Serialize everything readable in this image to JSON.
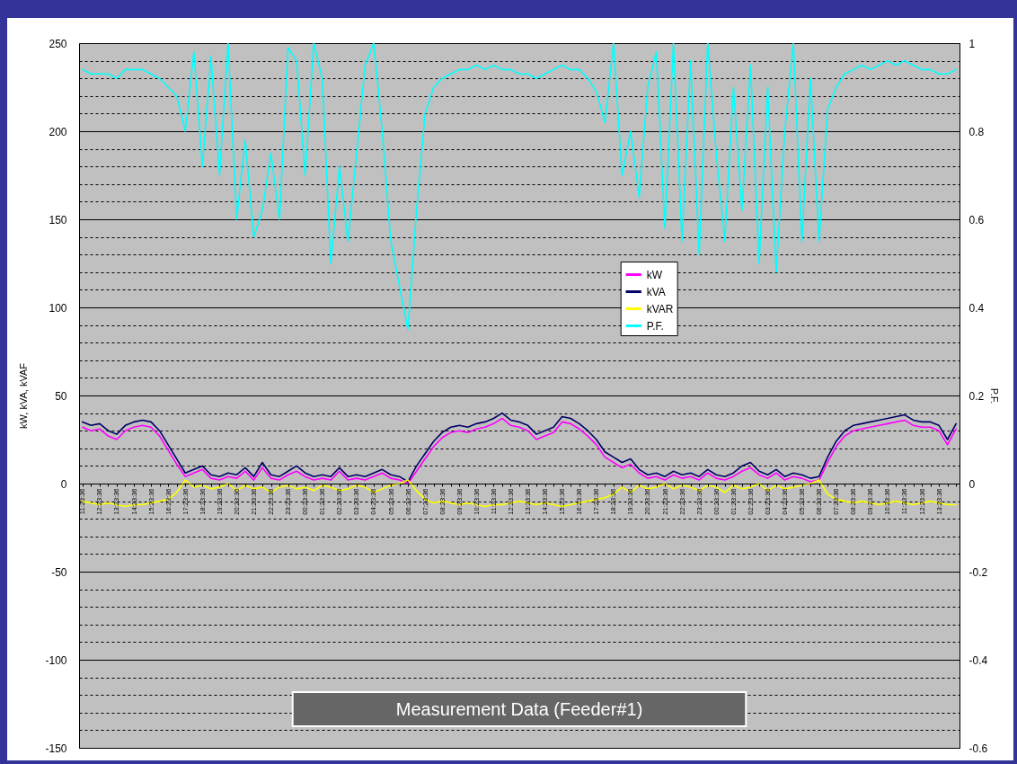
{
  "chart_data": {
    "type": "line",
    "title": "Measurement Data (Feeder#1)",
    "ylabel": "kW, kVA, kVAF",
    "y2label": "P.F.",
    "categories": [
      "11:23:36",
      null,
      "12:23:36",
      null,
      "13:23:36",
      null,
      "14:23:36",
      null,
      "15:23:36",
      null,
      "16:23:36",
      null,
      "17:23:36",
      null,
      "18:23:36",
      null,
      "19:23:36",
      null,
      "20:23:36",
      null,
      "21:23:36",
      null,
      "22:23:36",
      null,
      "23:23:36",
      null,
      "00:23:36",
      null,
      "01:23:36",
      null,
      "02:23:36",
      null,
      "03:23:36",
      null,
      "04:23:36",
      null,
      "05:23:36",
      null,
      "06:23:36",
      null,
      "07:23:36",
      null,
      "08:23:36",
      null,
      "09:23:36",
      null,
      "10:23:36",
      null,
      "11:23:36",
      null,
      "12:23:36",
      null,
      "13:23:36",
      null,
      "14:23:36",
      null,
      "15:23:36",
      null,
      "16:23:36",
      null,
      "17:23:36",
      null,
      "18:23:36",
      null,
      "19:23:36",
      null,
      "20:23:36",
      null,
      "21:23:36",
      null,
      "22:23:36",
      null,
      "23:23:36",
      null,
      "00:23:36",
      null,
      "01:23:36",
      null,
      "02:23:36",
      null,
      "03:23:36",
      null,
      "04:23:36",
      null,
      "05:23:36",
      null,
      "06:23:36",
      null,
      "07:23:36",
      null,
      "08:23:36",
      null,
      "09:23:36",
      null,
      "10:23:36",
      null,
      "11:23:36",
      null,
      "12:23:36",
      null,
      "13:23:36",
      null,
      null
    ],
    "series": [
      {
        "name": "kW",
        "color": "#ff00ff",
        "values": [
          32,
          30,
          31,
          27,
          25,
          30,
          32,
          33,
          32,
          27,
          19,
          11,
          4,
          6,
          8,
          3,
          2,
          4,
          3,
          7,
          2,
          9,
          3,
          2,
          5,
          7,
          4,
          2,
          3,
          2,
          7,
          2,
          3,
          2,
          4,
          6,
          3,
          2,
          0,
          7,
          14,
          21,
          26,
          29,
          30,
          29,
          31,
          32,
          34,
          37,
          33,
          32,
          30,
          25,
          27,
          29,
          35,
          34,
          31,
          27,
          22,
          15,
          12,
          9,
          11,
          6,
          3,
          4,
          2,
          5,
          3,
          4,
          2,
          6,
          3,
          2,
          4,
          7,
          9,
          5,
          3,
          6,
          2,
          4,
          3,
          1,
          2,
          12,
          21,
          27,
          30,
          31,
          32,
          33,
          34,
          35,
          36,
          33,
          32,
          32,
          30,
          22,
          31
        ]
      },
      {
        "name": "kVA",
        "color": "#000066",
        "values": [
          35,
          33,
          34,
          30,
          28,
          33,
          35,
          36,
          35,
          30,
          22,
          14,
          6,
          8,
          10,
          5,
          4,
          6,
          5,
          9,
          4,
          12,
          5,
          4,
          7,
          10,
          6,
          4,
          5,
          4,
          9,
          4,
          5,
          4,
          6,
          8,
          5,
          4,
          1,
          10,
          17,
          24,
          29,
          32,
          33,
          32,
          34,
          35,
          37,
          40,
          36,
          35,
          33,
          28,
          30,
          32,
          38,
          37,
          34,
          30,
          25,
          18,
          15,
          12,
          14,
          8,
          5,
          6,
          4,
          7,
          5,
          6,
          4,
          8,
          5,
          4,
          6,
          10,
          12,
          7,
          5,
          8,
          4,
          6,
          5,
          3,
          4,
          15,
          24,
          30,
          33,
          34,
          35,
          36,
          37,
          38,
          39,
          36,
          35,
          35,
          33,
          25,
          34
        ]
      },
      {
        "name": "kVAR",
        "color": "#ffff00",
        "values": [
          -10,
          -11,
          -12,
          -11,
          -12,
          -13,
          -12,
          -12,
          -11,
          -10,
          -9,
          -5,
          2,
          -2,
          -1,
          -3,
          -2,
          0,
          -4,
          -1,
          -3,
          -2,
          -5,
          -2,
          -1,
          -3,
          -2,
          -4,
          -1,
          -2,
          -4,
          -3,
          -1,
          -2,
          -5,
          -3,
          -1,
          0,
          2,
          -4,
          -9,
          -11,
          -10,
          -11,
          -12,
          -11,
          -12,
          -13,
          -12,
          -12,
          -11,
          -10,
          -11,
          -12,
          -11,
          -12,
          -13,
          -12,
          -11,
          -10,
          -9,
          -8,
          -6,
          -2,
          -5,
          -1,
          -3,
          -2,
          0,
          -3,
          -1,
          -2,
          -4,
          -1,
          -2,
          -5,
          -1,
          -3,
          -2,
          0,
          -4,
          -1,
          -3,
          -2,
          -1,
          0,
          2,
          -6,
          -9,
          -10,
          -11,
          -10,
          -11,
          -12,
          -11,
          -10,
          -11,
          -12,
          -11,
          -10,
          -11,
          -12,
          -12
        ]
      },
      {
        "name": "P.F.",
        "color": "#00ffff",
        "axis": "y2",
        "values": [
          0.94,
          0.93,
          0.93,
          0.93,
          0.92,
          0.94,
          0.94,
          0.94,
          0.93,
          0.92,
          0.9,
          0.88,
          0.8,
          0.98,
          0.72,
          0.97,
          0.7,
          1.0,
          0.6,
          0.78,
          0.56,
          0.62,
          0.75,
          0.6,
          0.99,
          0.96,
          0.7,
          1.0,
          0.92,
          0.5,
          0.72,
          0.55,
          0.75,
          0.95,
          1.0,
          0.8,
          0.55,
          0.45,
          0.35,
          0.62,
          0.84,
          0.9,
          0.92,
          0.93,
          0.94,
          0.94,
          0.95,
          0.94,
          0.95,
          0.94,
          0.94,
          0.93,
          0.93,
          0.92,
          0.93,
          0.94,
          0.95,
          0.94,
          0.94,
          0.92,
          0.89,
          0.82,
          1.0,
          0.7,
          0.8,
          0.65,
          0.9,
          0.98,
          0.58,
          1.0,
          0.55,
          0.96,
          0.52,
          1.0,
          0.75,
          0.55,
          0.9,
          0.62,
          0.95,
          0.5,
          0.9,
          0.48,
          0.8,
          1.0,
          0.55,
          0.92,
          0.55,
          0.85,
          0.9,
          0.93,
          0.94,
          0.95,
          0.94,
          0.95,
          0.96,
          0.95,
          0.96,
          0.95,
          0.94,
          0.94,
          0.93,
          0.93,
          0.94
        ]
      }
    ],
    "ylim": [
      -150,
      250
    ],
    "yticks": [
      250,
      {
        "value": 240,
        "label": null
      },
      {
        "value": 230,
        "label": null
      },
      {
        "value": 220,
        "label": null
      },
      {
        "value": 210,
        "label": null
      },
      200,
      {
        "value": 190,
        "label": null
      },
      {
        "value": 180,
        "label": null
      },
      {
        "value": 170,
        "label": null
      },
      {
        "value": 160,
        "label": null
      },
      150,
      {
        "value": 140,
        "label": null
      },
      {
        "value": 130,
        "label": null
      },
      {
        "value": 120,
        "label": null
      },
      {
        "value": 110,
        "label": null
      },
      100,
      {
        "value": 90,
        "label": null
      },
      {
        "value": 80,
        "label": null
      },
      {
        "value": 70,
        "label": null
      },
      {
        "value": 60,
        "label": null
      },
      50,
      {
        "value": 40,
        "label": null
      },
      {
        "value": 30,
        "label": null
      },
      {
        "value": 20,
        "label": null
      },
      {
        "value": 10,
        "label": null
      },
      0,
      {
        "value": -10,
        "label": null
      },
      {
        "value": -20,
        "label": null
      },
      {
        "value": -30,
        "label": null
      },
      {
        "value": -40,
        "label": null
      },
      -50,
      {
        "value": -60,
        "label": null
      },
      {
        "value": -70,
        "label": null
      },
      {
        "value": -80,
        "label": null
      },
      {
        "value": -90,
        "label": null
      },
      -100,
      {
        "value": -110,
        "label": null
      },
      {
        "value": -120,
        "label": null
      },
      {
        "value": -130,
        "label": null
      },
      {
        "value": -140,
        "label": null
      },
      -150
    ],
    "y2lim": [
      -0.6,
      1
    ],
    "y2ticks": [
      1,
      0.8,
      0.6,
      0.4,
      0.2,
      0,
      -0.2,
      -0.4,
      -0.6
    ],
    "grid": "y",
    "legend": "center"
  }
}
